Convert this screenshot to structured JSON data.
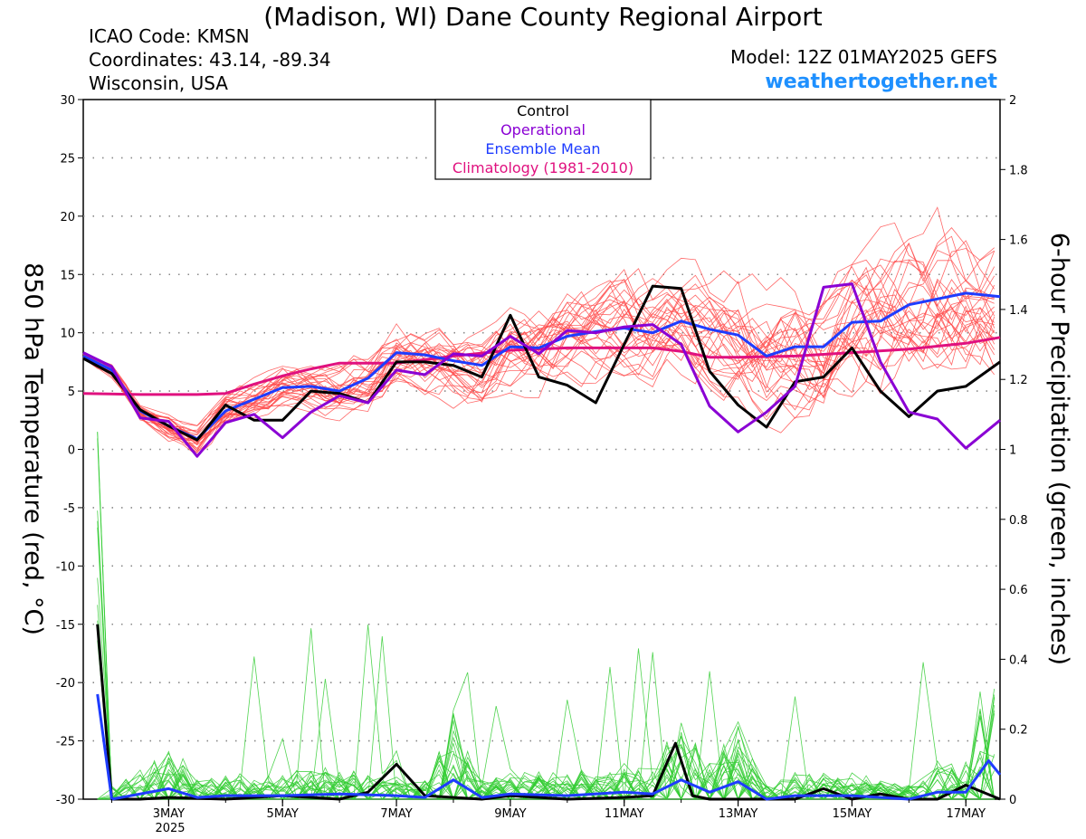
{
  "header": {
    "title": "(Madison, WI) Dane County Regional Airport",
    "icao": "ICAO Code: KMSN",
    "coordinates": "Coordinates: 43.14, -89.34",
    "region": "Wisconsin, USA",
    "model": "Model: 12Z 01MAY2025 GEFS",
    "site": "weathertogether.net",
    "site_color": "#1e90ff"
  },
  "chart_data": {
    "type": "line",
    "title": "(Madison, WI) Dane County Regional Airport",
    "ylabel_left": "850 hPa Temperature (red, °C)",
    "ylabel_right": "6-hour Precipitation (green, inches)",
    "x_ticks": [
      "3MAY",
      "5MAY",
      "7MAY",
      "9MAY",
      "11MAY",
      "13MAY",
      "15MAY",
      "17MAY"
    ],
    "x_year_label": "2025",
    "x_range_days": [
      1.5,
      17.6
    ],
    "ylim_left": [
      -30,
      30
    ],
    "y_ticks_left": [
      "30",
      "25",
      "20",
      "15",
      "10",
      "5",
      "0",
      "-5",
      "-10",
      "-15",
      "-20",
      "-25",
      "-30"
    ],
    "ylim_right": [
      0,
      2
    ],
    "y_ticks_right": [
      "2",
      "1.8",
      "1.6",
      "1.4",
      "1.2",
      "1",
      "0.8",
      "0.6",
      "0.4",
      "0.2",
      "0"
    ],
    "grid": "dotted horizontal",
    "legend": {
      "placement": "top-center",
      "entries": [
        {
          "label": "Control",
          "color": "#000000"
        },
        {
          "label": "Operational",
          "color": "#8a00d4"
        },
        {
          "label": "Ensemble Mean",
          "color": "#1e3cff"
        },
        {
          "label": "Climatology (1981-2010)",
          "color": "#e0117f"
        }
      ]
    },
    "colors": {
      "members_temp": "#ff4c4c",
      "members_precip": "#33cc33",
      "control": "#000000",
      "operational": "#8a00d4",
      "mean": "#1e3cff",
      "climatology": "#e0117f"
    },
    "series": [
      {
        "name": "Climatology (1981-2010)",
        "axis": "left",
        "x": [
          1.5,
          2.5,
          3.5,
          4,
          4.5,
          5,
          5.5,
          6,
          6.5,
          7,
          8,
          9,
          10,
          11,
          11.5,
          12,
          12.5,
          13,
          14,
          15,
          16,
          17,
          17.6
        ],
        "values": [
          4.8,
          4.7,
          4.7,
          4.8,
          5.6,
          6.3,
          6.9,
          7.4,
          7.4,
          7.4,
          8.0,
          8.5,
          8.7,
          8.7,
          8.7,
          8.4,
          7.9,
          7.9,
          8.0,
          8.3,
          8.6,
          9.1,
          9.6
        ]
      },
      {
        "name": "Ensemble Mean",
        "axis": "left",
        "x": [
          1.5,
          2.0,
          2.5,
          3.0,
          3.5,
          4.0,
          4.5,
          5.0,
          5.5,
          6.0,
          6.5,
          7.0,
          7.5,
          8.0,
          8.5,
          9.0,
          9.5,
          10.0,
          10.5,
          11.0,
          11.5,
          12.0,
          12.5,
          13.0,
          13.5,
          14.0,
          14.5,
          15.0,
          15.5,
          16.0,
          16.5,
          17.0,
          17.6
        ],
        "values": [
          8.0,
          6.8,
          3.3,
          2.0,
          0.9,
          3.3,
          4.3,
          5.3,
          5.4,
          5.0,
          6.1,
          8.3,
          8.1,
          7.6,
          7.2,
          8.8,
          8.7,
          9.7,
          10.1,
          10.4,
          10.0,
          11.0,
          10.3,
          9.8,
          8.0,
          8.8,
          8.8,
          10.9,
          11.0,
          12.4,
          12.9,
          13.4,
          13.1
        ]
      },
      {
        "name": "Control",
        "axis": "left",
        "x": [
          1.5,
          2.0,
          2.5,
          3.0,
          3.5,
          4.0,
          4.5,
          5.0,
          5.5,
          6.0,
          6.5,
          7.0,
          7.5,
          8.0,
          8.5,
          9.0,
          9.5,
          10.0,
          10.5,
          11.0,
          11.5,
          12.0,
          12.5,
          13.0,
          13.5,
          14.0,
          14.5,
          15.0,
          15.5,
          16.0,
          16.5,
          17.0,
          17.6
        ],
        "values": [
          7.8,
          6.5,
          3.4,
          2.0,
          0.8,
          3.8,
          2.5,
          2.5,
          5.0,
          4.8,
          4.0,
          7.5,
          7.5,
          7.2,
          6.2,
          11.5,
          6.2,
          5.5,
          4.0,
          9.0,
          14.0,
          13.8,
          6.7,
          3.8,
          1.9,
          5.8,
          6.2,
          8.7,
          5.0,
          2.8,
          5.0,
          5.4,
          7.5
        ]
      },
      {
        "name": "Operational",
        "axis": "left",
        "x": [
          1.5,
          2.0,
          2.5,
          3.0,
          3.5,
          4.0,
          4.5,
          5.0,
          5.5,
          6.0,
          6.5,
          7.0,
          7.5,
          8.0,
          8.5,
          9.0,
          9.5,
          10.0,
          10.5,
          11.0,
          11.5,
          12.0,
          12.5,
          13.0,
          13.5,
          14.0,
          14.5,
          15.0,
          15.5,
          16.0,
          16.5,
          17.0,
          17.6
        ],
        "values": [
          8.3,
          7.1,
          2.7,
          2.4,
          -0.6,
          2.3,
          3.0,
          1.0,
          3.2,
          4.6,
          4.0,
          6.8,
          6.4,
          8.2,
          8.0,
          9.7,
          8.2,
          10.2,
          10.0,
          10.5,
          10.7,
          9.0,
          3.7,
          1.5,
          3.2,
          5.4,
          13.9,
          14.2,
          7.5,
          3.2,
          2.6,
          0.1,
          2.5
        ]
      },
      {
        "name": "Control",
        "axis": "right",
        "x": [
          1.75,
          2.0,
          2.5,
          3.0,
          4.0,
          5.0,
          6.0,
          6.5,
          7.0,
          7.5,
          8.0,
          8.5,
          9.0,
          10.0,
          11.0,
          11.5,
          11.9,
          12.2,
          12.5,
          13.0,
          14.0,
          14.5,
          15.0,
          15.5,
          16.0,
          16.5,
          17.0,
          17.6
        ],
        "values": [
          0.5,
          0.0,
          0.0,
          0.005,
          0.0,
          0.01,
          0.0,
          0.02,
          0.1,
          0.01,
          0.005,
          0.0,
          0.01,
          0.0,
          0.005,
          0.01,
          0.16,
          0.01,
          0.0,
          0.0,
          0.0,
          0.03,
          0.0,
          0.015,
          0.0,
          0.0,
          0.04,
          0.0
        ]
      },
      {
        "name": "Ensemble Mean",
        "axis": "right",
        "x": [
          1.75,
          2.0,
          3.0,
          3.5,
          4.0,
          5.0,
          6.0,
          7.0,
          7.5,
          8.0,
          8.5,
          9.0,
          10.0,
          11.0,
          11.5,
          12.0,
          12.5,
          13.0,
          13.5,
          14.0,
          15.0,
          16.0,
          16.5,
          17.0,
          17.4,
          17.6
        ],
        "values": [
          0.3,
          0.0,
          0.03,
          0.005,
          0.01,
          0.01,
          0.015,
          0.01,
          0.005,
          0.055,
          0.005,
          0.015,
          0.01,
          0.02,
          0.015,
          0.055,
          0.02,
          0.05,
          0.0,
          0.01,
          0.01,
          0.0,
          0.02,
          0.02,
          0.11,
          0.07
        ]
      }
    ]
  }
}
